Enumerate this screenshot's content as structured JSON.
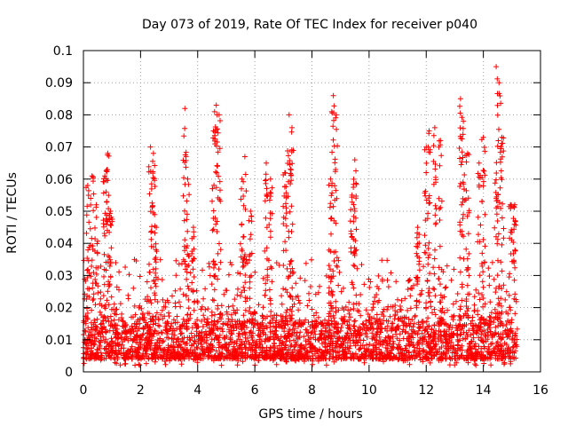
{
  "chart_data": {
    "type": "scatter",
    "title": "Day 073 of 2019, Rate Of TEC Index for receiver p040",
    "xlabel": "GPS time / hours",
    "ylabel": "ROTI / TECUs",
    "xlim": [
      0,
      16
    ],
    "ylim": [
      0,
      0.1
    ],
    "xticks": [
      "0",
      "2",
      "4",
      "6",
      "8",
      "10",
      "12",
      "14",
      "16"
    ],
    "yticks": [
      "0",
      "0.01",
      "0.02",
      "0.03",
      "0.04",
      "0.05",
      "0.06",
      "0.07",
      "0.08",
      "0.09",
      "0.1"
    ],
    "grid": true,
    "marker": "plus",
    "color": "#ff0000",
    "series": [
      {
        "name": "ROTI",
        "x_range": [
          0,
          15.2
        ],
        "baseline_values_typical": [
          0.004,
          0.015
        ],
        "peaks": [
          {
            "x": 0.15,
            "y": 0.058
          },
          {
            "x": 0.3,
            "y": 0.061
          },
          {
            "x": 0.45,
            "y": 0.052
          },
          {
            "x": 0.75,
            "y": 0.061
          },
          {
            "x": 0.85,
            "y": 0.068
          },
          {
            "x": 0.95,
            "y": 0.05
          },
          {
            "x": 2.35,
            "y": 0.07
          },
          {
            "x": 2.45,
            "y": 0.068
          },
          {
            "x": 2.55,
            "y": 0.045
          },
          {
            "x": 3.55,
            "y": 0.082
          },
          {
            "x": 3.65,
            "y": 0.06
          },
          {
            "x": 3.85,
            "y": 0.045
          },
          {
            "x": 4.55,
            "y": 0.075
          },
          {
            "x": 4.65,
            "y": 0.083
          },
          {
            "x": 4.75,
            "y": 0.08
          },
          {
            "x": 5.55,
            "y": 0.06
          },
          {
            "x": 5.65,
            "y": 0.067
          },
          {
            "x": 5.85,
            "y": 0.05
          },
          {
            "x": 6.4,
            "y": 0.065
          },
          {
            "x": 6.55,
            "y": 0.06
          },
          {
            "x": 7.2,
            "y": 0.08
          },
          {
            "x": 7.3,
            "y": 0.076
          },
          {
            "x": 7.05,
            "y": 0.062
          },
          {
            "x": 8.75,
            "y": 0.086
          },
          {
            "x": 8.85,
            "y": 0.08
          },
          {
            "x": 8.65,
            "y": 0.06
          },
          {
            "x": 9.5,
            "y": 0.066
          },
          {
            "x": 9.4,
            "y": 0.055
          },
          {
            "x": 11.7,
            "y": 0.045
          },
          {
            "x": 12.1,
            "y": 0.075
          },
          {
            "x": 12.0,
            "y": 0.07
          },
          {
            "x": 12.3,
            "y": 0.076
          },
          {
            "x": 12.5,
            "y": 0.072
          },
          {
            "x": 13.2,
            "y": 0.085
          },
          {
            "x": 13.3,
            "y": 0.078
          },
          {
            "x": 13.45,
            "y": 0.068
          },
          {
            "x": 13.85,
            "y": 0.065
          },
          {
            "x": 14.0,
            "y": 0.073
          },
          {
            "x": 14.45,
            "y": 0.095
          },
          {
            "x": 14.55,
            "y": 0.09
          },
          {
            "x": 14.65,
            "y": 0.073
          },
          {
            "x": 14.95,
            "y": 0.052
          },
          {
            "x": 15.1,
            "y": 0.052
          }
        ]
      }
    ]
  }
}
